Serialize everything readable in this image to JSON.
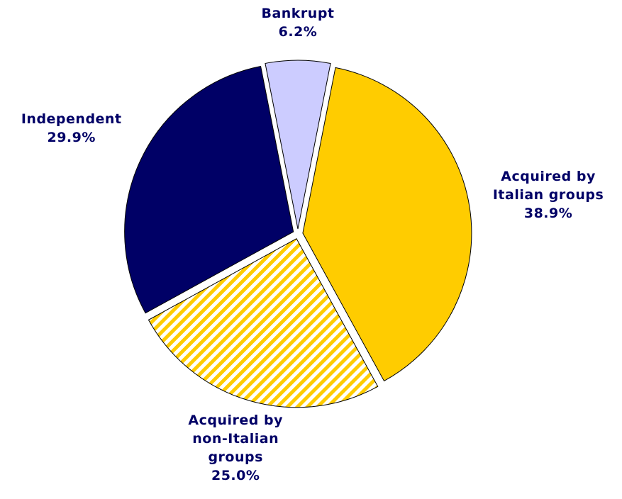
{
  "chart_data": {
    "type": "pie",
    "categories": [
      "Bankrupt",
      "Acquired by Italian groups",
      "Acquired by non-Italian groups",
      "Independent"
    ],
    "values": [
      6.2,
      38.9,
      25.0,
      29.9
    ],
    "value_labels": [
      "6.2%",
      "38.9%",
      "25.0%",
      "29.9%"
    ],
    "colors": [
      "#ccccff",
      "#ffcc00",
      "#ffcc00",
      "#000066"
    ],
    "hatched": [
      false,
      false,
      true,
      false
    ]
  }
}
